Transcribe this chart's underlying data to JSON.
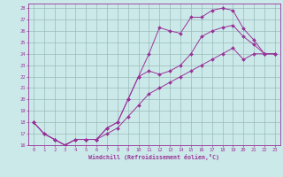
{
  "xlabel": "Windchill (Refroidissement éolien,°C)",
  "bg_color": "#cce9e9",
  "line_color": "#993399",
  "grid_color": "#99bbbb",
  "xlim": [
    -0.5,
    23.5
  ],
  "ylim": [
    16,
    28.4
  ],
  "yticks": [
    16,
    17,
    18,
    19,
    20,
    21,
    22,
    23,
    24,
    25,
    26,
    27,
    28
  ],
  "xticks": [
    0,
    1,
    2,
    3,
    4,
    5,
    6,
    7,
    8,
    9,
    10,
    11,
    12,
    13,
    14,
    15,
    16,
    17,
    18,
    19,
    20,
    21,
    22,
    23
  ],
  "line1_x": [
    0,
    1,
    2,
    3,
    4,
    5,
    6,
    7,
    8,
    9,
    10,
    11,
    12,
    13,
    14,
    15,
    16,
    17,
    18,
    19,
    20,
    21,
    22,
    23
  ],
  "line1_y": [
    18,
    17,
    16.5,
    16,
    16.5,
    16.5,
    16.5,
    17.5,
    18,
    20,
    22,
    24,
    26.3,
    26.0,
    25.8,
    27.2,
    27.2,
    27.8,
    28.0,
    27.8,
    26.2,
    25.2,
    24.0,
    24.0
  ],
  "line2_x": [
    0,
    1,
    2,
    3,
    4,
    5,
    6,
    7,
    8,
    9,
    10,
    11,
    12,
    13,
    14,
    15,
    16,
    17,
    18,
    19,
    20,
    21,
    22,
    23
  ],
  "line2_y": [
    18,
    17,
    16.5,
    16,
    16.5,
    16.5,
    16.5,
    17.5,
    18,
    20,
    22,
    22.5,
    22.2,
    22.5,
    23.0,
    24.0,
    25.5,
    26.0,
    26.3,
    26.5,
    25.5,
    24.8,
    24.0,
    24.0
  ],
  "line3_x": [
    0,
    1,
    2,
    3,
    4,
    5,
    6,
    7,
    8,
    9,
    10,
    11,
    12,
    13,
    14,
    15,
    16,
    17,
    18,
    19,
    20,
    21,
    22,
    23
  ],
  "line3_y": [
    18,
    17,
    16.5,
    16,
    16.5,
    16.5,
    16.5,
    17.0,
    17.5,
    18.5,
    19.5,
    20.5,
    21.0,
    21.5,
    22.0,
    22.5,
    23.0,
    23.5,
    24.0,
    24.5,
    23.5,
    24.0,
    24.0,
    24.0
  ]
}
